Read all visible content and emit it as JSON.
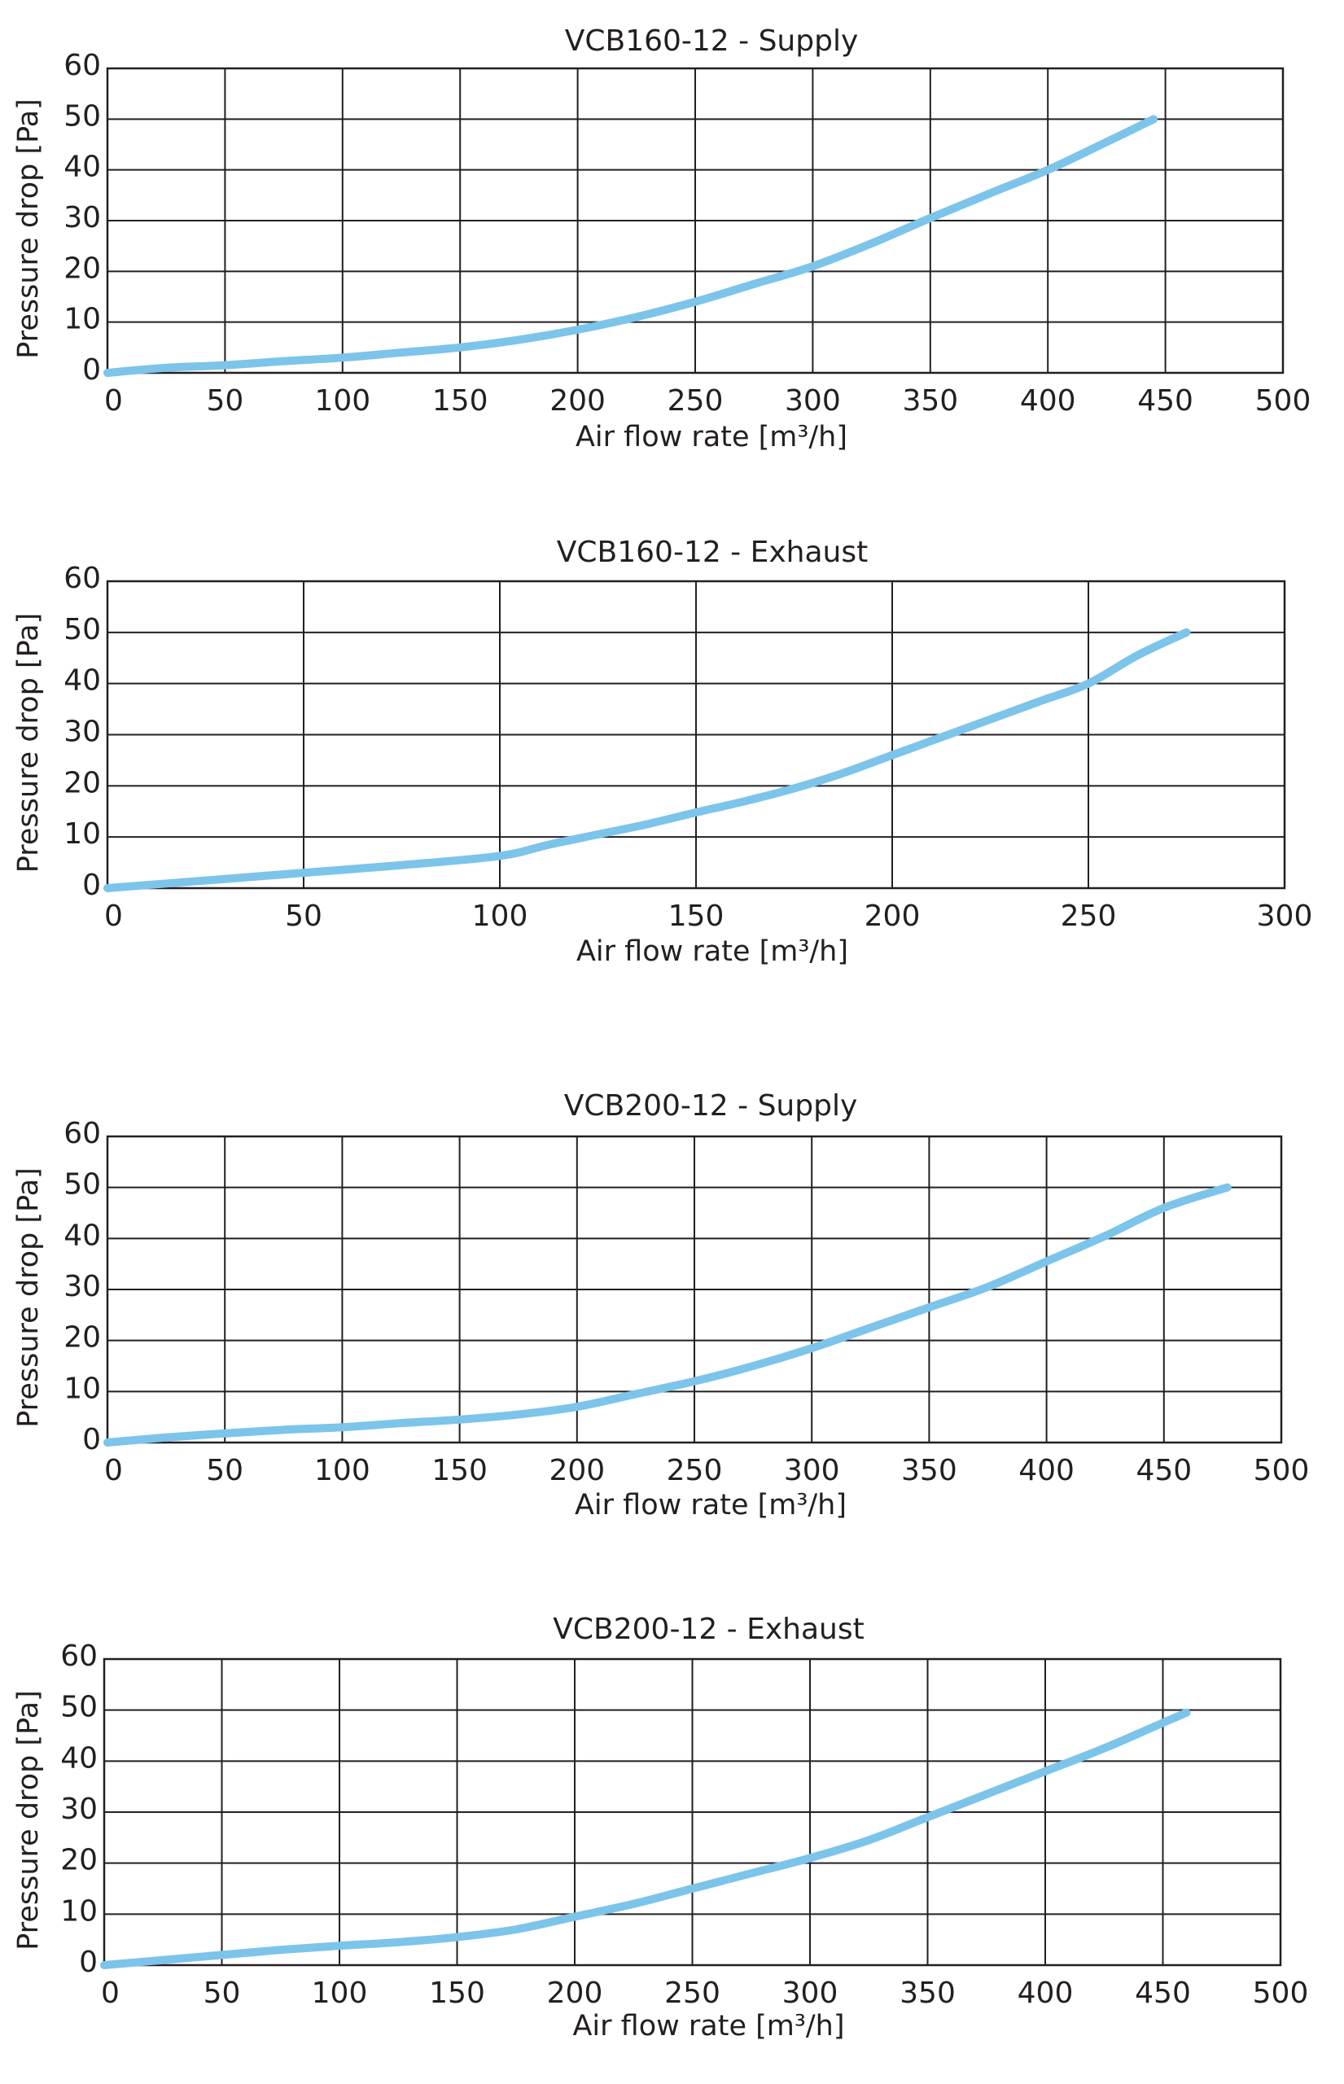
{
  "colors": {
    "curve": "#7cc4ea",
    "grid": "#231f20",
    "text": "#231f20",
    "background": "#ffffff"
  },
  "chart_data": [
    {
      "type": "line",
      "title": "VCB160-12 - Supply",
      "xlabel": "Air flow rate [m³/h]",
      "ylabel": "Pressure drop [Pa]",
      "xlim": [
        0,
        500
      ],
      "ylim": [
        0,
        60
      ],
      "xticks": [
        0,
        50,
        100,
        150,
        200,
        250,
        300,
        350,
        400,
        450,
        500
      ],
      "yticks": [
        0,
        10,
        20,
        30,
        40,
        50,
        60
      ],
      "grid": true,
      "series": [
        {
          "x": [
            0,
            25,
            50,
            75,
            100,
            125,
            150,
            175,
            200,
            225,
            250,
            275,
            300,
            325,
            350,
            375,
            400,
            425,
            445
          ],
          "y": [
            0,
            1,
            1.5,
            2.3,
            3,
            4,
            5,
            6.5,
            8.5,
            11,
            14,
            17.5,
            21,
            25.5,
            30.5,
            35.3,
            40,
            45.5,
            50
          ]
        }
      ]
    },
    {
      "type": "line",
      "title": "VCB160-12 - Exhaust",
      "xlabel": "Air flow rate [m³/h]",
      "ylabel": "Pressure drop [Pa]",
      "xlim": [
        0,
        300
      ],
      "ylim": [
        0,
        60
      ],
      "xticks": [
        0,
        50,
        100,
        150,
        200,
        250,
        300
      ],
      "yticks": [
        0,
        10,
        20,
        30,
        40,
        50,
        60
      ],
      "grid": true,
      "series": [
        {
          "x": [
            0,
            25,
            50,
            75,
            100,
            112.5,
            125,
            137.5,
            150,
            162.5,
            175,
            187.5,
            200,
            212.5,
            225,
            237.5,
            250,
            262.5,
            275
          ],
          "y": [
            0,
            1.5,
            3,
            4.5,
            6.3,
            8.5,
            10.5,
            12.5,
            14.8,
            17,
            19.5,
            22.5,
            26,
            29.5,
            33,
            36.5,
            40,
            45.5,
            50
          ]
        }
      ]
    },
    {
      "type": "line",
      "title": "VCB200-12 - Supply",
      "xlabel": "Air flow rate [m³/h]",
      "ylabel": "Pressure drop [Pa]",
      "xlim": [
        0,
        500
      ],
      "ylim": [
        0,
        60
      ],
      "xticks": [
        0,
        50,
        100,
        150,
        200,
        250,
        300,
        350,
        400,
        450,
        500
      ],
      "yticks": [
        0,
        10,
        20,
        30,
        40,
        50,
        60
      ],
      "grid": true,
      "series": [
        {
          "x": [
            0,
            25,
            50,
            75,
            100,
            125,
            150,
            175,
            200,
            225,
            250,
            275,
            300,
            325,
            350,
            375,
            400,
            425,
            450,
            477
          ],
          "y": [
            0,
            1,
            1.8,
            2.5,
            3,
            3.8,
            4.5,
            5.5,
            7,
            9.5,
            12,
            15,
            18.5,
            22.5,
            26.5,
            30.5,
            35.5,
            40.5,
            46,
            50
          ]
        }
      ]
    },
    {
      "type": "line",
      "title": "VCB200-12 - Exhaust",
      "xlabel": "Air flow rate [m³/h]",
      "ylabel": "Pressure drop [Pa]",
      "xlim": [
        0,
        500
      ],
      "ylim": [
        0,
        60
      ],
      "xticks": [
        0,
        50,
        100,
        150,
        200,
        250,
        300,
        350,
        400,
        450,
        500
      ],
      "yticks": [
        0,
        10,
        20,
        30,
        40,
        50,
        60
      ],
      "grid": true,
      "series": [
        {
          "x": [
            0,
            25,
            50,
            75,
            100,
            125,
            150,
            175,
            200,
            225,
            250,
            275,
            300,
            325,
            350,
            375,
            400,
            425,
            450,
            460
          ],
          "y": [
            0,
            1,
            2,
            3,
            3.8,
            4.5,
            5.5,
            7,
            9.5,
            12,
            15,
            18,
            21,
            24.5,
            29,
            33.5,
            38,
            42.5,
            47.5,
            49.5
          ]
        }
      ]
    }
  ]
}
